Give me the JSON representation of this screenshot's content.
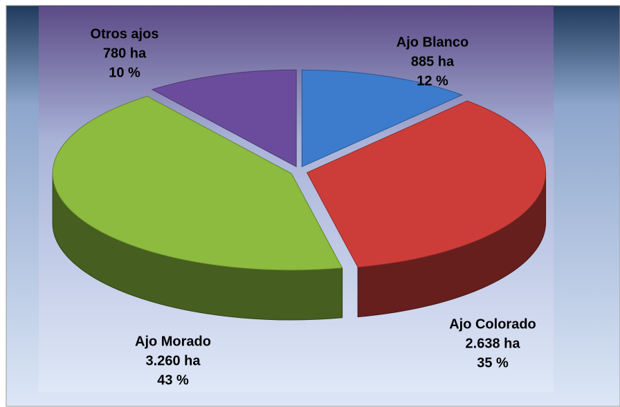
{
  "chart_data": {
    "type": "pie3d",
    "categories": [
      "Ajo Blanco",
      "Ajo Colorado",
      "Ajo Morado",
      "Otros ajos"
    ],
    "values": [
      885,
      2638,
      3260,
      780
    ],
    "value_labels": [
      "885 ha",
      "2.638 ha",
      "3.260 ha",
      "780 ha"
    ],
    "percents": [
      12,
      35,
      43,
      10
    ],
    "percent_labels": [
      "12 %",
      "35 %",
      "43 %",
      "10 %"
    ],
    "colors": [
      "#3d7bcc",
      "#cc3d3a",
      "#8cbb3f",
      "#6b4c9c"
    ]
  }
}
